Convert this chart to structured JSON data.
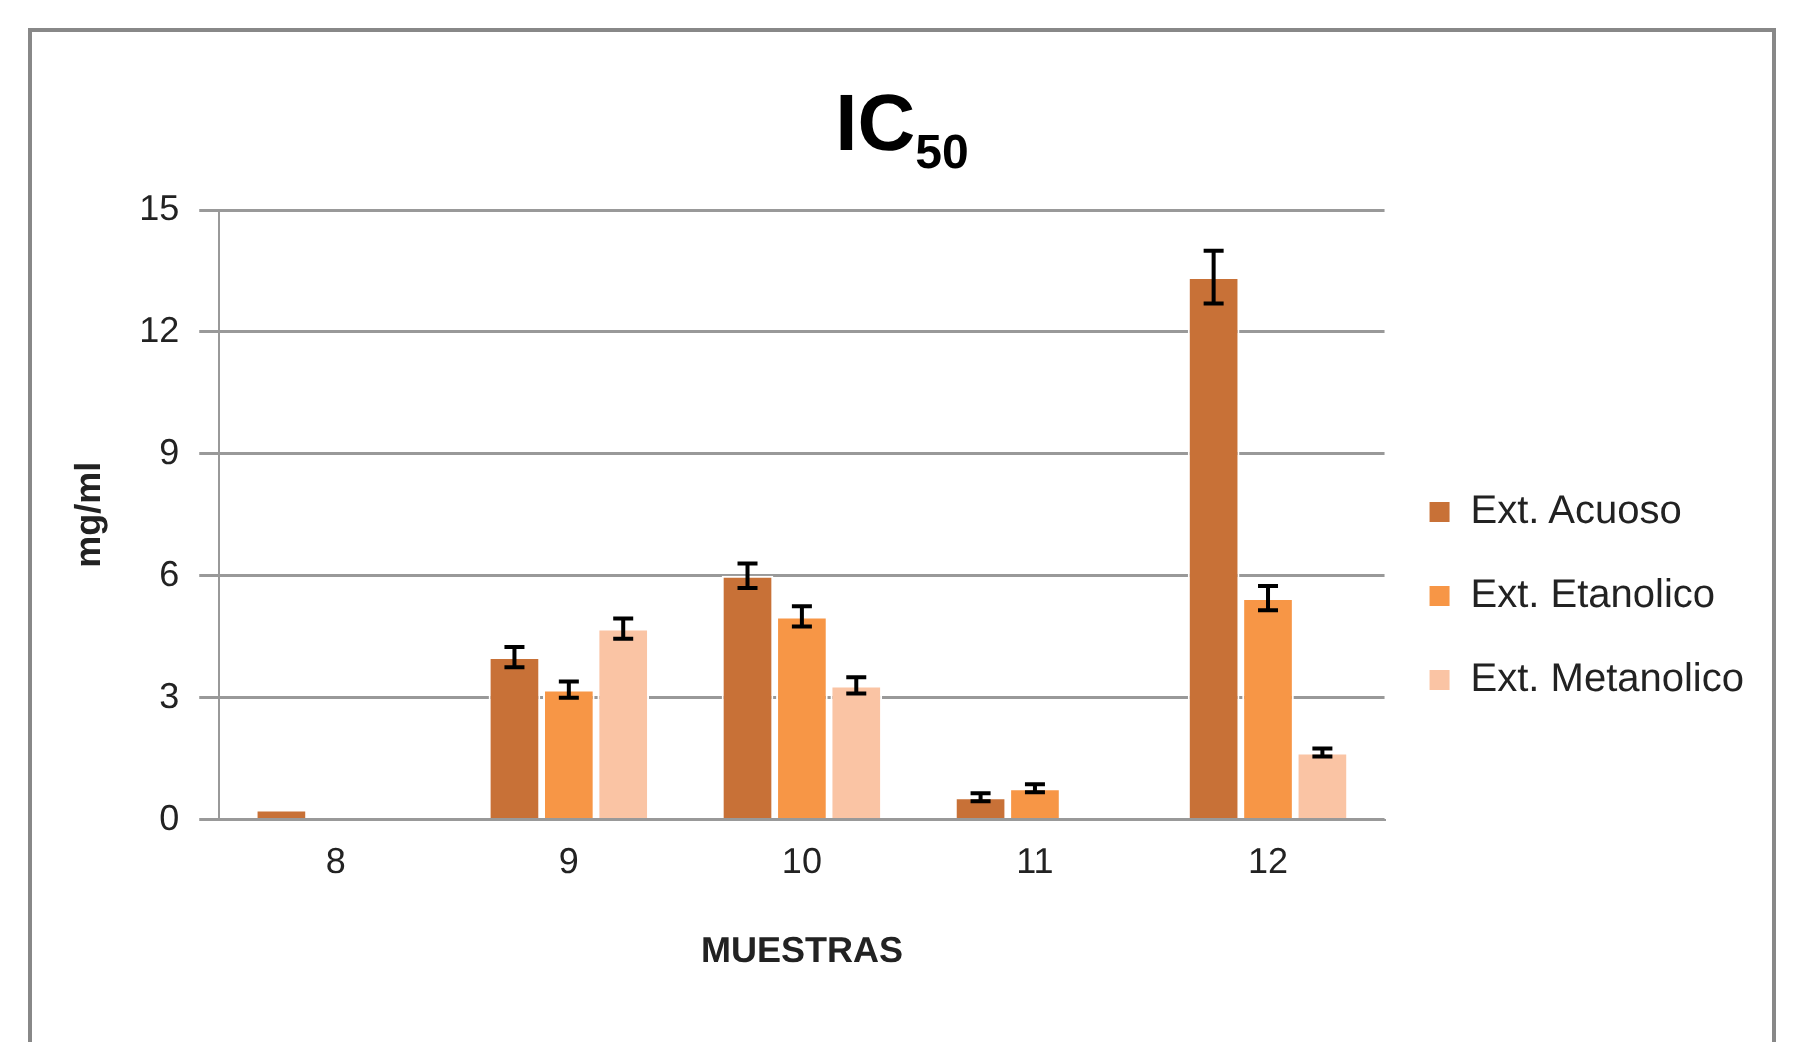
{
  "chart_data": {
    "type": "bar",
    "title": "IC$_{50}$",
    "xlabel": "MUESTRAS",
    "ylabel": "mg/ml",
    "categories": [
      "8",
      "9",
      "10",
      "11",
      "12"
    ],
    "series": [
      {
        "name": "Ext. Acuoso",
        "color": "#c87137",
        "values": [
          0.25,
          4.0,
          6.0,
          0.55,
          13.35
        ],
        "errors": [
          null,
          0.25,
          0.3,
          0.1,
          0.65
        ]
      },
      {
        "name": "Ext. Etanolico",
        "color": "#f79646",
        "values": [
          null,
          3.2,
          5.0,
          0.77,
          5.45
        ],
        "errors": [
          null,
          0.2,
          0.25,
          0.1,
          0.3
        ]
      },
      {
        "name": "Ext. Metanolico",
        "color": "#fac4a4",
        "values": [
          null,
          4.7,
          3.3,
          null,
          1.65
        ],
        "errors": [
          null,
          0.25,
          0.2,
          null,
          0.1
        ]
      }
    ],
    "ylim": [
      0,
      15
    ],
    "yticks": [
      0,
      3,
      6,
      9,
      12,
      15
    ],
    "grid": "y",
    "legend": "right"
  }
}
